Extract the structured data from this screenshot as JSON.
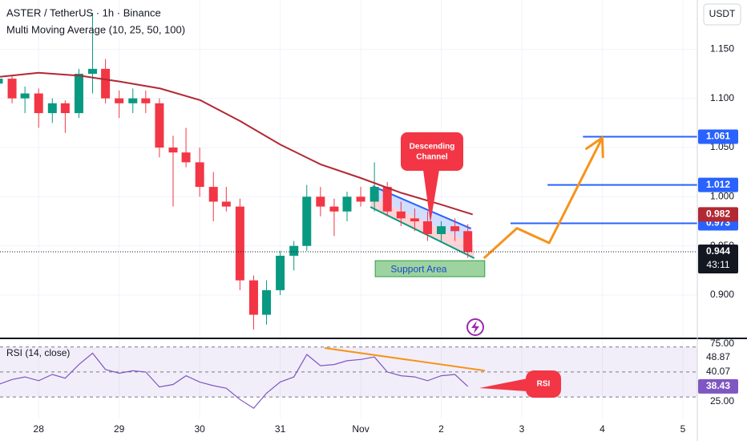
{
  "chart_data": {
    "type": "candlestick",
    "title": "ASTER / TetherUS · 1h · Binance",
    "indicator": "Multi Moving Average (10, 25, 50, 100)",
    "currency": "USDT",
    "x": [
      27.5,
      27.67,
      27.83,
      28.0,
      28.17,
      28.33,
      28.5,
      28.67,
      28.83,
      29.0,
      29.17,
      29.33,
      29.5,
      29.67,
      29.83,
      30.0,
      30.17,
      30.33,
      30.5,
      30.67,
      30.83,
      31.0,
      31.17,
      31.33,
      31.5,
      31.67,
      31.83,
      32.0,
      32.17,
      32.33,
      32.5,
      32.67,
      32.83,
      33.0,
      33.17,
      33.33
    ],
    "open": [
      1.115,
      1.12,
      1.1,
      1.105,
      1.085,
      1.095,
      1.085,
      1.125,
      1.13,
      1.1,
      1.095,
      1.1,
      1.095,
      1.05,
      1.045,
      1.035,
      1.01,
      0.995,
      0.99,
      0.915,
      0.88,
      0.905,
      0.94,
      0.95,
      1.0,
      0.99,
      0.985,
      1.0,
      0.995,
      1.01,
      0.985,
      0.978,
      0.975,
      0.962,
      0.97,
      0.965
    ],
    "high": [
      1.125,
      1.123,
      1.112,
      1.11,
      1.1,
      1.098,
      1.13,
      1.187,
      1.14,
      1.108,
      1.11,
      1.108,
      1.1,
      1.062,
      1.07,
      1.05,
      1.025,
      1.01,
      0.998,
      0.92,
      0.915,
      0.945,
      0.955,
      1.012,
      1.01,
      0.998,
      1.005,
      1.01,
      1.035,
      1.015,
      0.995,
      0.988,
      0.985,
      0.975,
      0.978,
      0.972
    ],
    "low": [
      1.1,
      1.095,
      1.085,
      1.07,
      1.075,
      1.065,
      1.08,
      1.105,
      1.095,
      1.08,
      1.085,
      1.085,
      1.04,
      0.99,
      1.03,
      1.0,
      0.975,
      0.985,
      0.905,
      0.865,
      0.87,
      0.9,
      0.925,
      0.945,
      0.98,
      0.96,
      0.975,
      0.99,
      0.985,
      0.98,
      0.97,
      0.965,
      0.955,
      0.955,
      0.955,
      0.938
    ],
    "close": [
      1.12,
      1.1,
      1.105,
      1.085,
      1.095,
      1.085,
      1.125,
      1.13,
      1.1,
      1.095,
      1.1,
      1.095,
      1.05,
      1.045,
      1.035,
      1.01,
      0.995,
      0.99,
      0.915,
      0.88,
      0.905,
      0.94,
      0.95,
      1.0,
      0.99,
      0.985,
      1.0,
      0.995,
      1.01,
      0.985,
      0.978,
      0.975,
      0.962,
      0.97,
      0.965,
      0.944
    ],
    "up_color": "#089981",
    "down_color": "#f23645",
    "xlim": [
      27.52,
      36.18
    ],
    "xticks": [
      28,
      29,
      30,
      31,
      {
        "value": 32,
        "label": "Nov"
      },
      {
        "value": 33,
        "label": "2"
      },
      {
        "value": 34,
        "label": "3"
      },
      {
        "value": 35,
        "label": "4"
      },
      {
        "value": 36,
        "label": "5"
      }
    ],
    "ylim": [
      0.856,
      1.2
    ],
    "yticks": [
      {
        "value": 1.15,
        "label": "1.150"
      },
      {
        "value": 1.1,
        "label": "1.100"
      },
      {
        "value": 1.05,
        "label": "1.050"
      },
      {
        "value": 1,
        "label": "1.000"
      },
      {
        "value": 0.95,
        "label": "0.950"
      },
      {
        "value": 0.9,
        "label": "0.900"
      }
    ],
    "moving_average": {
      "color": "#b22833",
      "x": [
        27.52,
        28.0,
        28.52,
        29.01,
        29.51,
        30.01,
        30.5,
        31.0,
        31.5,
        32.0,
        32.5,
        33.0,
        33.39
      ],
      "values": [
        1.122,
        1.126,
        1.123,
        1.117,
        1.11,
        1.098,
        1.077,
        1.053,
        1.033,
        1.019,
        1.004,
        0.992,
        0.982
      ]
    },
    "level_color": "#2962ff",
    "levels": [
      {
        "value": 1.061,
        "from": 34.76
      },
      {
        "value": 1.012,
        "from": 34.32
      },
      {
        "value": 0.973,
        "from": 33.86
      }
    ],
    "countdown": "43:11",
    "channel": {
      "upper": {
        "x": [
          32.15,
          33.37
        ],
        "y": [
          1.0107,
          0.9676
        ]
      },
      "lower": {
        "x": [
          32.12,
          33.41
        ],
        "y": [
          0.9896,
          0.9375
        ]
      }
    },
    "callout": {
      "lines": [
        "Descending",
        "Channel"
      ]
    },
    "support": {
      "label": "Support Area",
      "x": [
        32.18,
        33.54
      ],
      "y": [
        0.9187,
        0.935
      ]
    },
    "projection": {
      "color": "#f7931a",
      "x": [
        33.53,
        33.94,
        34.34,
        35.0
      ],
      "y": [
        0.9375,
        0.968,
        0.953,
        1.06
      ]
    },
    "rsi": {
      "type": "line",
      "title": "RSI (14, close)",
      "color": "#7e57c2",
      "values": [
        40,
        44,
        46,
        43,
        48,
        45,
        56,
        65,
        52,
        49,
        51,
        50,
        38,
        40,
        47,
        42,
        39,
        37,
        28,
        21,
        33,
        42,
        46,
        64,
        55,
        56,
        59,
        60,
        62,
        50,
        47,
        46,
        43,
        47,
        48,
        38.43
      ],
      "ylim": [
        14,
        76.9
      ],
      "yticks": [
        {
          "value": 75,
          "label": "75.00"
        },
        {
          "value": 25,
          "label": "25.00"
        }
      ],
      "levels": [
        70,
        50,
        30
      ],
      "extra_values": [
        48.87,
        40.07
      ],
      "divergence": {
        "x": [
          31.55,
          33.54
        ],
        "y": [
          69.2,
          51.1
        ]
      },
      "callout": "RSI"
    }
  }
}
